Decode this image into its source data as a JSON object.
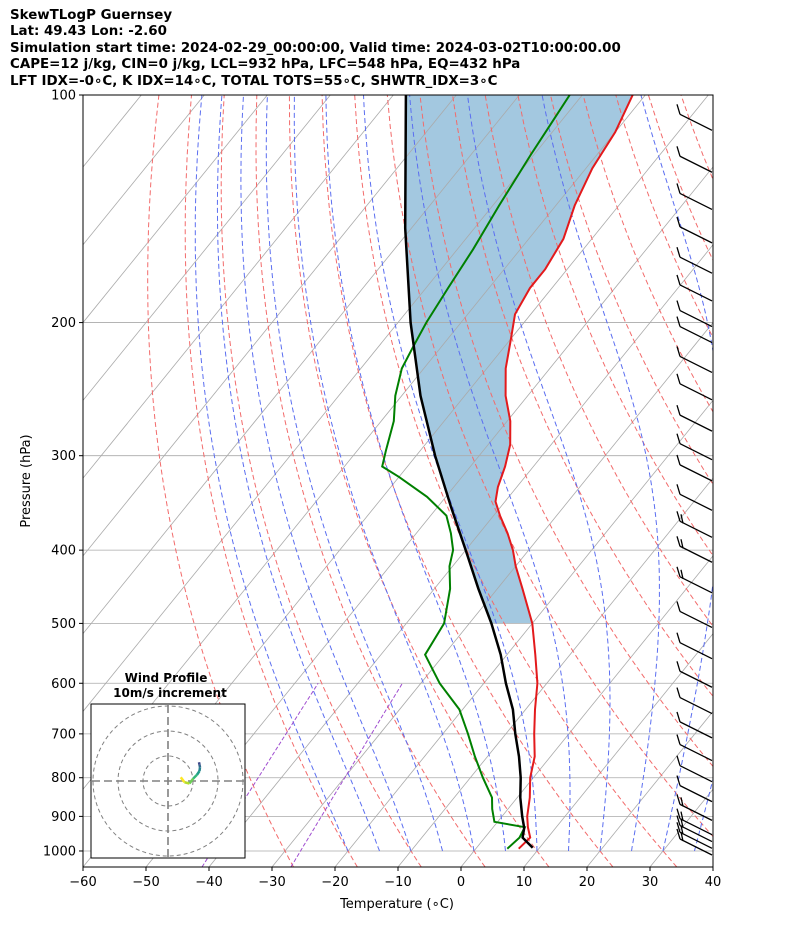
{
  "header": {
    "line1": "SkewTLogP Guernsey",
    "line2": "Lat: 49.43   Lon: -2.60",
    "line3": "Simulation start time: 2024-02-29_00:00:00, Valid time: 2024-03-02T10:00:00.00",
    "line4": "CAPE=12 j/kg, CIN=0 j/kg, LCL=932 hPa, LFC=548 hPa, EQ=432 hPa",
    "line5": "LFT IDX=-0∘C, K IDX=14∘C, TOTAL TOTS=55∘C, SHWTR_IDX=3∘C"
  },
  "colors": {
    "temperature": "#e31a1c",
    "dewpoint": "#008000",
    "parcel": "#000000",
    "cape_fill": "#a3c8e0",
    "dry_adiabat": "#f26b6b",
    "moist_adiabat": "#5b6ef0",
    "mixing_ratio": "#a04ed0",
    "isotherm": "#aaaaaa",
    "hodo_ring": "#808080"
  },
  "chart_data": {
    "type": "skewt",
    "title": "SkewTLogP Guernsey",
    "xlabel": "Temperature (∘C)",
    "ylabel": "Pressure (hPa)",
    "xlim": [
      -60,
      40
    ],
    "ylim": [
      1050,
      100
    ],
    "x_ticks": [
      -60,
      -50,
      -40,
      -30,
      -20,
      -10,
      0,
      10,
      20,
      30,
      40
    ],
    "x_tick_labels": [
      "−60",
      "−50",
      "−40",
      "−30",
      "−20",
      "−10",
      "0",
      "10",
      "20",
      "30",
      "40"
    ],
    "y_ticks": [
      1000,
      900,
      800,
      700,
      600,
      500,
      400,
      300,
      200,
      100
    ],
    "y_tick_labels": [
      "1000",
      "900",
      "800",
      "700",
      "600",
      "500",
      "400",
      "300",
      "200",
      "100"
    ],
    "temperature_profile": [
      [
        993,
        6.8
      ],
      [
        960,
        7.2
      ],
      [
        930,
        5.5
      ],
      [
        900,
        4.0
      ],
      [
        850,
        2.0
      ],
      [
        800,
        -0.5
      ],
      [
        750,
        -2.5
      ],
      [
        700,
        -5.5
      ],
      [
        650,
        -8.5
      ],
      [
        600,
        -11.5
      ],
      [
        550,
        -15.5
      ],
      [
        500,
        -20.0
      ],
      [
        450,
        -26.0
      ],
      [
        420,
        -30.0
      ],
      [
        400,
        -32.5
      ],
      [
        380,
        -35.5
      ],
      [
        360,
        -39.0
      ],
      [
        345,
        -41.5
      ],
      [
        330,
        -43.0
      ],
      [
        310,
        -44.5
      ],
      [
        290,
        -46.5
      ],
      [
        270,
        -49.5
      ],
      [
        250,
        -53.5
      ],
      [
        230,
        -57.0
      ],
      [
        210,
        -60.0
      ],
      [
        195,
        -62.5
      ],
      [
        180,
        -63.5
      ],
      [
        170,
        -63.5
      ],
      [
        155,
        -64.5
      ],
      [
        140,
        -67.0
      ],
      [
        125,
        -69.0
      ],
      [
        112,
        -70.0
      ],
      [
        100,
        -72.0
      ]
    ],
    "dewpoint_profile": [
      [
        993,
        5.0
      ],
      [
        960,
        5.5
      ],
      [
        930,
        5.0
      ],
      [
        915,
        -0.5
      ],
      [
        880,
        -2.5
      ],
      [
        850,
        -4.0
      ],
      [
        800,
        -8.0
      ],
      [
        750,
        -12.0
      ],
      [
        700,
        -16.0
      ],
      [
        650,
        -20.5
      ],
      [
        600,
        -27.0
      ],
      [
        550,
        -33.0
      ],
      [
        500,
        -34.0
      ],
      [
        450,
        -37.5
      ],
      [
        420,
        -40.5
      ],
      [
        400,
        -42.0
      ],
      [
        380,
        -44.5
      ],
      [
        360,
        -47.5
      ],
      [
        340,
        -53.0
      ],
      [
        320,
        -60.0
      ],
      [
        310,
        -64.0
      ],
      [
        295,
        -65.5
      ],
      [
        270,
        -68.0
      ],
      [
        250,
        -71.0
      ],
      [
        230,
        -73.5
      ],
      [
        215,
        -74.5
      ],
      [
        200,
        -75.5
      ],
      [
        180,
        -76.5
      ],
      [
        160,
        -77.5
      ],
      [
        140,
        -79.0
      ],
      [
        120,
        -80.5
      ],
      [
        100,
        -82.0
      ]
    ],
    "parcel_profile": [
      [
        990,
        8.9
      ],
      [
        960,
        6.0
      ],
      [
        932,
        5.0
      ],
      [
        900,
        3.2
      ],
      [
        850,
        0.5
      ],
      [
        800,
        -2.0
      ],
      [
        750,
        -5.0
      ],
      [
        700,
        -8.5
      ],
      [
        650,
        -12.0
      ],
      [
        600,
        -16.5
      ],
      [
        550,
        -21.0
      ],
      [
        500,
        -26.5
      ],
      [
        450,
        -33.0
      ],
      [
        400,
        -40.0
      ],
      [
        350,
        -48.0
      ],
      [
        300,
        -57.0
      ],
      [
        250,
        -67.0
      ],
      [
        200,
        -78.0
      ],
      [
        150,
        -91.0
      ],
      [
        100,
        -108.0
      ]
    ],
    "cape_region": {
      "from_hpa": 548,
      "to_hpa": 100
    },
    "wind_barbs": [
      {
        "p": 1000,
        "speed_kt": 25
      },
      {
        "p": 980,
        "speed_kt": 25
      },
      {
        "p": 960,
        "speed_kt": 20
      },
      {
        "p": 940,
        "speed_kt": 20
      },
      {
        "p": 900,
        "speed_kt": 20
      },
      {
        "p": 850,
        "speed_kt": 15
      },
      {
        "p": 800,
        "speed_kt": 15
      },
      {
        "p": 750,
        "speed_kt": 15
      },
      {
        "p": 700,
        "speed_kt": 15
      },
      {
        "p": 650,
        "speed_kt": 15
      },
      {
        "p": 600,
        "speed_kt": 15
      },
      {
        "p": 550,
        "speed_kt": 15
      },
      {
        "p": 500,
        "speed_kt": 15
      },
      {
        "p": 450,
        "speed_kt": 20
      },
      {
        "p": 410,
        "speed_kt": 20
      },
      {
        "p": 380,
        "speed_kt": 20
      },
      {
        "p": 350,
        "speed_kt": 15
      },
      {
        "p": 320,
        "speed_kt": 15
      },
      {
        "p": 300,
        "speed_kt": 15
      },
      {
        "p": 275,
        "speed_kt": 15
      },
      {
        "p": 250,
        "speed_kt": 15
      },
      {
        "p": 230,
        "speed_kt": 15
      },
      {
        "p": 210,
        "speed_kt": 15
      },
      {
        "p": 200,
        "speed_kt": 15
      },
      {
        "p": 185,
        "speed_kt": 15
      },
      {
        "p": 170,
        "speed_kt": 15
      },
      {
        "p": 155,
        "speed_kt": 15
      },
      {
        "p": 140,
        "speed_kt": 15
      },
      {
        "p": 125,
        "speed_kt": 15
      },
      {
        "p": 110,
        "speed_kt": 15
      }
    ],
    "hodograph": {
      "title": "Wind Profile",
      "subtitle": "10m/s increment",
      "rings_ms": [
        10,
        20,
        30
      ],
      "points_ms": [
        [
          -4.5,
          -1.5
        ],
        [
          -3.0,
          0.5
        ],
        [
          -1.0,
          1.0
        ],
        [
          0.5,
          -1.0
        ],
        [
          2.0,
          -2.5
        ],
        [
          3.0,
          -4.0
        ],
        [
          3.2,
          -5.5
        ],
        [
          3.0,
          -6.5
        ],
        [
          2.8,
          -7.5
        ]
      ]
    }
  }
}
